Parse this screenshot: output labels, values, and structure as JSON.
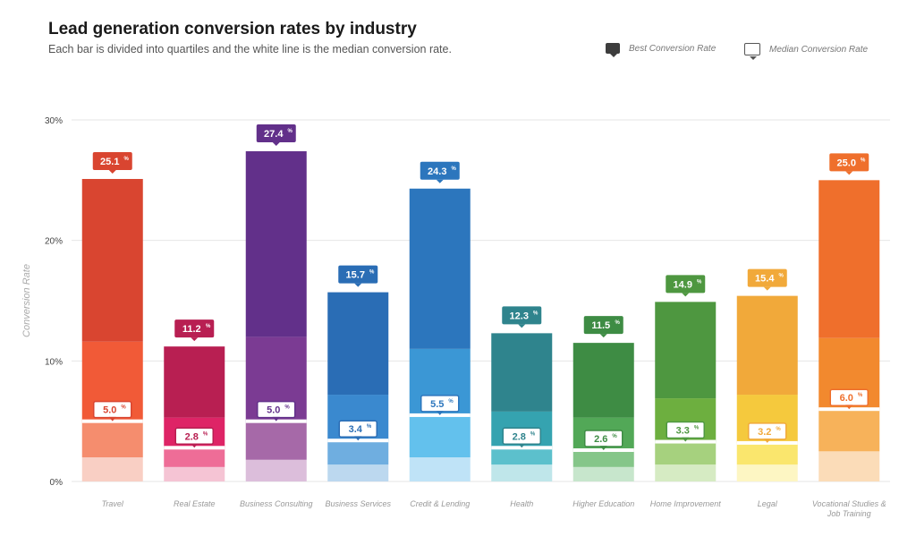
{
  "chart_data": {
    "type": "bar",
    "title": "Lead generation conversion rates by industry",
    "subtitle": "Each bar is divided into quartiles and the white line is the median conversion rate.",
    "ylabel": "Conversion Rate",
    "xlabel": "",
    "ylim": [
      0,
      30
    ],
    "yticks": [
      "0%",
      "10%",
      "20%",
      "30%"
    ],
    "grid": true,
    "legend": {
      "position": "top-right",
      "best_label": "Best Conversion Rate",
      "median_label": "Median Conversion Rate"
    },
    "categories": [
      {
        "name": "Travel",
        "best": 25.1,
        "q3": 11.6,
        "median": 5.0,
        "q1": 2.0,
        "best_label": "25.1",
        "median_label": "5.0",
        "colors": [
          "#f9cfc4",
          "#f58d6e",
          "#f15a37",
          "#d94530"
        ]
      },
      {
        "name": "Real Estate",
        "best": 11.2,
        "q3": 5.3,
        "median": 2.8,
        "q1": 1.2,
        "best_label": "11.2",
        "median_label": "2.8",
        "colors": [
          "#f5c4d4",
          "#ee6d97",
          "#de2466",
          "#b81f52"
        ]
      },
      {
        "name": "Business Consulting",
        "best": 27.4,
        "q3": 12.0,
        "median": 5.0,
        "q1": 1.8,
        "best_label": "27.4",
        "median_label": "5.0",
        "colors": [
          "#dcbedb",
          "#a669a8",
          "#7b3b93",
          "#62308a"
        ]
      },
      {
        "name": "Business Services",
        "best": 15.7,
        "q3": 7.2,
        "median": 3.4,
        "q1": 1.4,
        "best_label": "15.7",
        "median_label": "3.4",
        "colors": [
          "#bcd8ef",
          "#6faee0",
          "#3a89cf",
          "#2a6db5"
        ]
      },
      {
        "name": "Credit & Lending",
        "best": 24.3,
        "q3": 11.0,
        "median": 5.5,
        "q1": 2.0,
        "best_label": "24.3",
        "median_label": "5.5",
        "colors": [
          "#bfe3f7",
          "#63c1ed",
          "#3b97d5",
          "#2c76bd"
        ]
      },
      {
        "name": "Health",
        "best": 12.3,
        "q3": 5.8,
        "median": 2.8,
        "q1": 1.4,
        "best_label": "12.3",
        "median_label": "2.8",
        "colors": [
          "#bfe6ea",
          "#5cc0cc",
          "#35a3b0",
          "#2f848d"
        ]
      },
      {
        "name": "Higher Education",
        "best": 11.5,
        "q3": 5.3,
        "median": 2.6,
        "q1": 1.2,
        "best_label": "11.5",
        "median_label": "2.6",
        "colors": [
          "#c7e6cc",
          "#85c689",
          "#52a857",
          "#3e8c44"
        ]
      },
      {
        "name": "Home Improvement",
        "best": 14.9,
        "q3": 6.9,
        "median": 3.3,
        "q1": 1.4,
        "best_label": "14.9",
        "median_label": "3.3",
        "colors": [
          "#d6ebc3",
          "#a6d17e",
          "#6daf3f",
          "#4e9740"
        ]
      },
      {
        "name": "Legal",
        "best": 15.4,
        "q3": 7.2,
        "median": 3.2,
        "q1": 1.4,
        "best_label": "15.4",
        "median_label": "3.2",
        "colors": [
          "#fdf6c3",
          "#fae66d",
          "#f5c93d",
          "#f1a93a"
        ]
      },
      {
        "name": "Vocational Studies & Job Training",
        "best": 25.0,
        "q3": 11.9,
        "median": 6.0,
        "q1": 2.5,
        "best_label": "25.0",
        "median_label": "6.0",
        "colors": [
          "#fbdcb8",
          "#f7b25a",
          "#f2892e",
          "#ef6f2c"
        ]
      }
    ],
    "label_suffix": "%"
  }
}
